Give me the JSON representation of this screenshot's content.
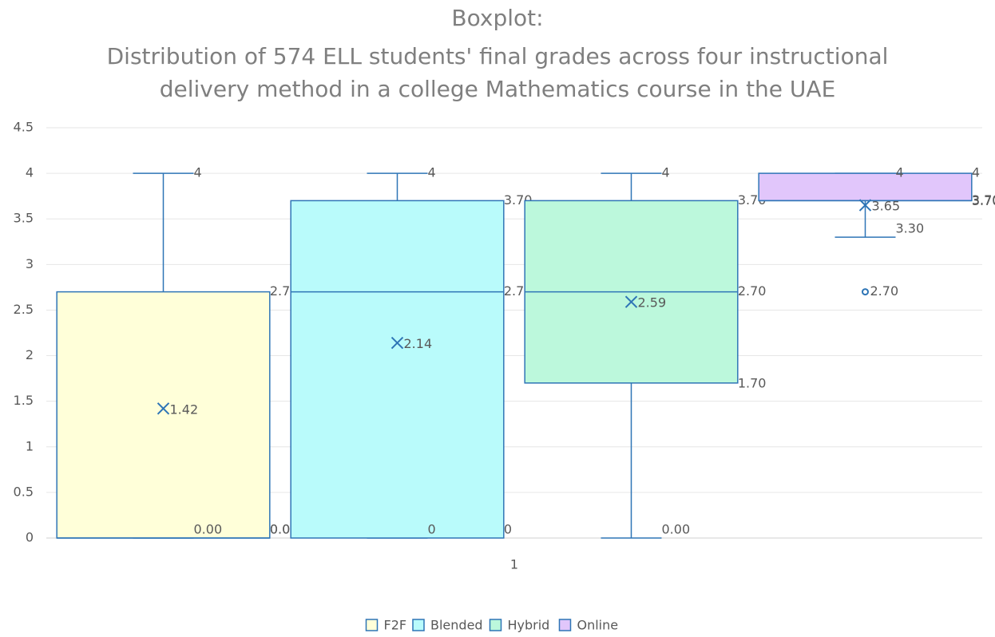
{
  "chart_data": {
    "type": "box",
    "title": [
      "Boxplot:",
      "Distribution of 574 ELL students' final grades across four instructional",
      "delivery method in a college Mathematics course in the UAE"
    ],
    "categories": [
      "1"
    ],
    "ylim": [
      0,
      4.5
    ],
    "yticks": [
      0,
      0.5,
      1,
      1.5,
      2,
      2.5,
      3,
      3.5,
      4,
      4.5
    ],
    "grid": true,
    "line_color": "#2e75b6",
    "legend": "bottom",
    "series": [
      {
        "name": "F2F",
        "color": "#ffffd9",
        "min": 0,
        "q1": 0,
        "median": 0,
        "q3": 2.7,
        "max": 4,
        "mean": 1.42,
        "outliers": [],
        "value_labels": {
          "min": "0.00",
          "q1": "0.00",
          "median": "0.00",
          "q3": "2.70",
          "max": "4",
          "mean": "1.42",
          "outliers": []
        }
      },
      {
        "name": "Blended",
        "color": "#b9fbfb",
        "min": 0,
        "q1": 0,
        "median": 2.7,
        "q3": 3.7,
        "max": 4,
        "mean": 2.14,
        "outliers": [],
        "value_labels": {
          "min": "0",
          "q1": "0",
          "median": "2.70",
          "q3": "3.70",
          "max": "4",
          "mean": "2.14",
          "outliers": []
        }
      },
      {
        "name": "Hybrid",
        "color": "#bcf8dc",
        "min": 0,
        "q1": 1.7,
        "median": 2.7,
        "q3": 3.7,
        "max": 4,
        "mean": 2.59,
        "outliers": [],
        "value_labels": {
          "min": "0.00",
          "q1": "1.70",
          "median": "2.70",
          "q3": "3.70",
          "max": "4",
          "mean": "2.59",
          "outliers": []
        }
      },
      {
        "name": "Online",
        "color": "#e1c6fb",
        "min": 3.3,
        "q1": 3.7,
        "median": 3.7,
        "q3": 4,
        "max": 4,
        "mean": 3.65,
        "outliers": [
          2.7
        ],
        "value_labels": {
          "min": "3.30",
          "q1": "3.70",
          "median": "3.70",
          "q3": "4",
          "max": "4",
          "mean": "3.65",
          "outliers": [
            "2.70"
          ]
        }
      }
    ]
  }
}
